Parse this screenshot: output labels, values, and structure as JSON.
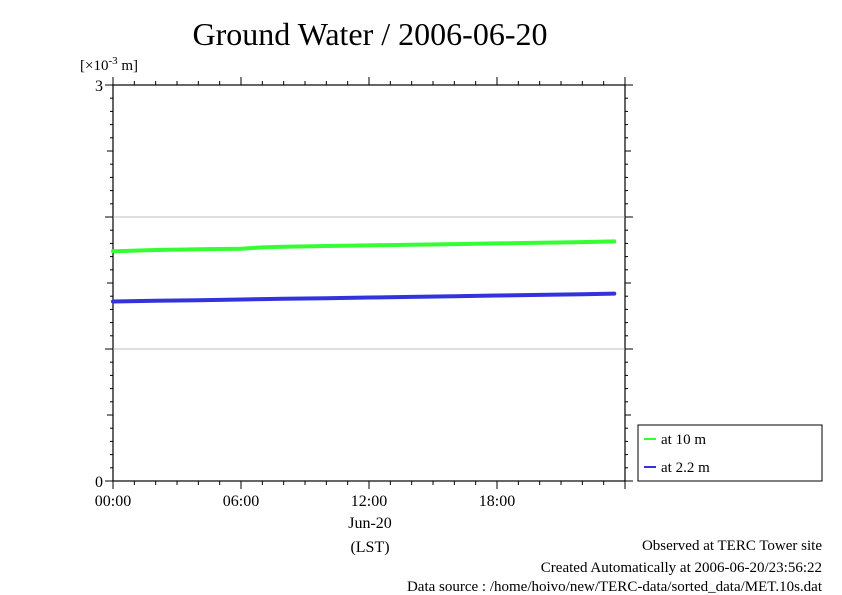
{
  "chart_data": {
    "type": "line",
    "title": "Ground Water / 2006-06-20",
    "y_unit_label": "[×10",
    "y_unit_exp": "-3",
    "y_unit_suffix": " m]",
    "ylim": [
      0,
      3
    ],
    "y_ticks": [
      "0",
      "3"
    ],
    "y_gridlines": [
      1,
      2
    ],
    "xlim_hours": [
      0,
      23.5
    ],
    "x_ticks": [
      {
        "hour": 0,
        "label": "00:00"
      },
      {
        "hour": 6,
        "label": "06:00"
      },
      {
        "hour": 12,
        "label": "12:00"
      },
      {
        "hour": 18,
        "label": "18:00"
      }
    ],
    "x_date_label": "Jun-20",
    "x_axis_label": "(LST)",
    "series": [
      {
        "name": "at 10 m",
        "color": "#33ff33",
        "x": [
          0,
          2,
          4,
          6,
          7,
          8,
          10,
          12,
          14,
          16,
          18,
          20,
          22,
          23.5
        ],
        "y": [
          1.74,
          1.75,
          1.755,
          1.76,
          1.77,
          1.775,
          1.78,
          1.785,
          1.79,
          1.795,
          1.8,
          1.805,
          1.81,
          1.815
        ]
      },
      {
        "name": "at 2.2 m",
        "color": "#3333dd",
        "x": [
          0,
          2,
          4,
          6,
          8,
          10,
          12,
          14,
          16,
          18,
          20,
          22,
          23.5
        ],
        "y": [
          1.36,
          1.365,
          1.37,
          1.375,
          1.38,
          1.385,
          1.39,
          1.395,
          1.4,
          1.405,
          1.41,
          1.415,
          1.42
        ]
      }
    ],
    "legend_position": "bottom-right-outside",
    "grid": "horizontal-minor"
  },
  "footer": {
    "line1": "Observed at TERC Tower site",
    "line2": "Created Automatically at 2006-06-20/23:56:22",
    "line3": "Data source : /home/hoivo/new/TERC-data/sorted_data/MET.10s.dat"
  }
}
